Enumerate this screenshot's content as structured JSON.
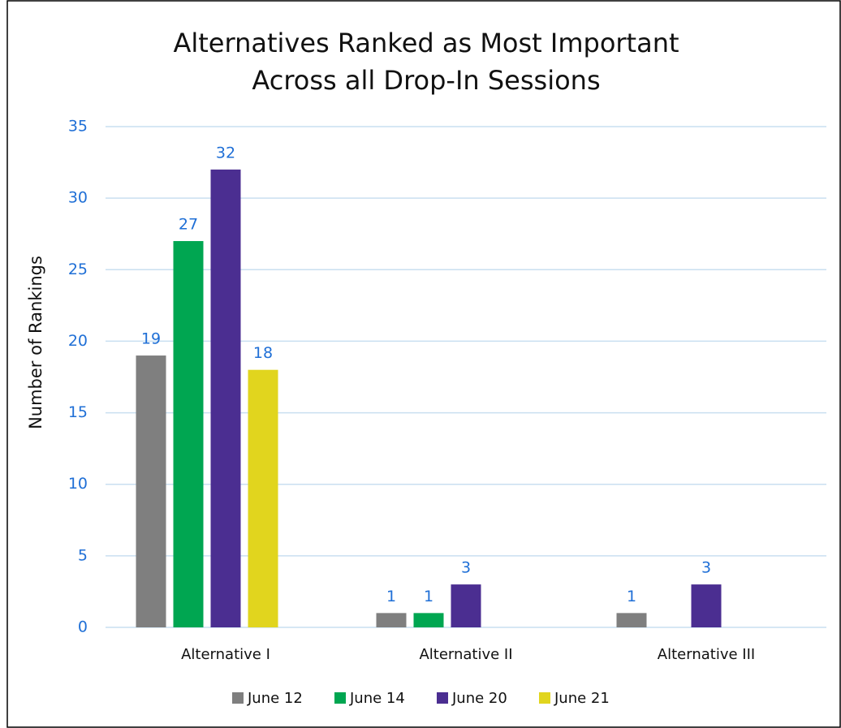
{
  "chart_data": {
    "type": "bar",
    "title": [
      "Alternatives Ranked as Most Important",
      "Across all Drop-In Sessions"
    ],
    "y_label": "Number of Rankings",
    "categories": [
      "Alternative I",
      "Alternative II",
      "Alternative III"
    ],
    "series": [
      {
        "name": "June 12",
        "color": "#7f7f7f",
        "values": [
          19,
          1,
          1
        ]
      },
      {
        "name": "June 14",
        "color": "#00a651",
        "values": [
          27,
          1,
          null
        ]
      },
      {
        "name": "June 20",
        "color": "#4b2e91",
        "values": [
          32,
          3,
          3
        ]
      },
      {
        "name": "June 21",
        "color": "#e1d51e",
        "values": [
          18,
          null,
          null
        ]
      }
    ],
    "ylim": [
      0,
      35
    ],
    "yticks": [
      0,
      5,
      10,
      15,
      20,
      25,
      30,
      35
    ],
    "grid": true,
    "legend": "bottom"
  }
}
